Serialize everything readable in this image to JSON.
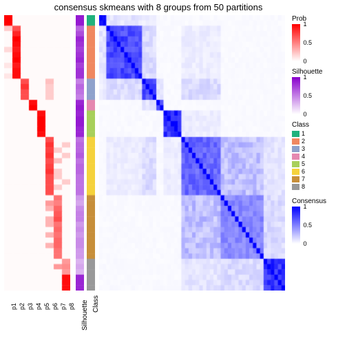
{
  "title": "consensus skmeans with 8 groups from 50 partitions",
  "n_samples": 52,
  "prob": {
    "columns": [
      "p1",
      "p2",
      "p3",
      "p4",
      "p5",
      "p6",
      "p7",
      "p8"
    ],
    "class_assignment": [
      1,
      1,
      2,
      2,
      2,
      2,
      2,
      2,
      2,
      2,
      2,
      2,
      3,
      3,
      3,
      3,
      4,
      4,
      5,
      5,
      5,
      5,
      5,
      6,
      6,
      6,
      6,
      6,
      6,
      6,
      6,
      6,
      6,
      6,
      7,
      7,
      7,
      7,
      7,
      7,
      7,
      7,
      7,
      7,
      7,
      7,
      8,
      8,
      8,
      8,
      8,
      8
    ],
    "prob_strength": [
      1,
      1,
      0.7,
      0.85,
      1,
      0.95,
      0.9,
      0.95,
      1,
      0.9,
      0.95,
      0.95,
      0.7,
      0.8,
      0.7,
      0.7,
      0.95,
      1,
      0.95,
      1,
      1,
      1,
      0.95,
      0.7,
      0.8,
      0.75,
      0.8,
      0.7,
      0.75,
      0.8,
      0.7,
      0.7,
      0.7,
      0.7,
      0.55,
      0.5,
      0.6,
      0.65,
      0.7,
      0.55,
      0.6,
      0.55,
      0.6,
      0.6,
      0.55,
      0.55,
      0.4,
      0.45,
      0.4,
      0.95,
      0.95,
      0.95
    ],
    "secondary_col": [
      -1,
      -1,
      0,
      1,
      -1,
      1,
      0,
      1,
      -1,
      0,
      1,
      0,
      5,
      5,
      5,
      5,
      -1,
      -1,
      -1,
      -1,
      -1,
      -1,
      -1,
      5,
      7,
      6,
      7,
      6,
      5,
      6,
      6,
      7,
      6,
      5,
      6,
      5,
      5,
      6,
      5,
      5,
      6,
      5,
      6,
      5,
      6,
      6,
      7,
      6,
      7,
      -1,
      -1,
      -1
    ],
    "secondary_strength": [
      0,
      0,
      0.2,
      0.15,
      0,
      0.1,
      0.15,
      0.1,
      0,
      0.1,
      0.1,
      0.1,
      0.25,
      0.2,
      0.2,
      0.2,
      0,
      0,
      0,
      0,
      0,
      0,
      0,
      0.25,
      0.2,
      0.2,
      0.2,
      0.25,
      0.2,
      0.2,
      0.2,
      0.2,
      0.2,
      0.2,
      0.35,
      0.4,
      0.3,
      0.3,
      0.3,
      0.3,
      0.3,
      0.3,
      0.3,
      0.3,
      0.3,
      0.3,
      0.5,
      0.4,
      0.5,
      0,
      0,
      0
    ],
    "colormap": {
      "low": "#ffffff",
      "high": "#ff0000"
    }
  },
  "silhouette": {
    "values": [
      0.9,
      0.9,
      0.6,
      0.7,
      0.85,
      0.8,
      0.75,
      0.8,
      0.85,
      0.75,
      0.8,
      0.8,
      0.5,
      0.6,
      0.55,
      0.5,
      0.85,
      0.9,
      0.85,
      0.9,
      0.9,
      0.85,
      0.85,
      0.55,
      0.6,
      0.6,
      0.65,
      0.55,
      0.6,
      0.6,
      0.55,
      0.55,
      0.55,
      0.55,
      0.4,
      0.35,
      0.45,
      0.5,
      0.5,
      0.4,
      0.45,
      0.4,
      0.45,
      0.45,
      0.4,
      0.4,
      0.3,
      0.35,
      0.3,
      0.85,
      0.85,
      0.85
    ],
    "colormap": {
      "low": "#ffffff",
      "high": "#8800cc"
    }
  },
  "class": {
    "palette": {
      "1": "#1fb27d",
      "2": "#f08860",
      "3": "#8fa2cc",
      "4": "#e589b0",
      "5": "#a8d05a",
      "6": "#f5d23c",
      "7": "#c78f3a",
      "8": "#999999"
    }
  },
  "consensus": {
    "colormap": {
      "low": "#ffffff",
      "high": "#0000ff"
    },
    "block_strength": {
      "1": 1.0,
      "2": 0.85,
      "3": 0.8,
      "4": 0.95,
      "5": 1.0,
      "6": 0.7,
      "7": 0.55,
      "8": 0.95
    },
    "off_block_pairs": [
      [
        "1",
        "2",
        0.15
      ],
      [
        "1",
        "3",
        0.1
      ],
      [
        "2",
        "3",
        0.2
      ],
      [
        "2",
        "6",
        0.1
      ],
      [
        "3",
        "4",
        0.15
      ],
      [
        "3",
        "6",
        0.2
      ],
      [
        "6",
        "7",
        0.35
      ],
      [
        "6",
        "8",
        0.15
      ],
      [
        "7",
        "8",
        0.2
      ],
      [
        "5",
        "6",
        0.1
      ]
    ]
  },
  "legends": {
    "prob": {
      "title": "Prob",
      "ticks": [
        0,
        0.5,
        1
      ]
    },
    "silhouette": {
      "title": "Silhouette",
      "ticks": [
        0,
        0.5,
        1
      ]
    },
    "class": {
      "title": "Class",
      "items": [
        1,
        2,
        3,
        4,
        5,
        6,
        7,
        8
      ]
    },
    "consensus": {
      "title": "Consensus",
      "ticks": [
        0,
        0.5,
        1
      ]
    }
  },
  "labels": {
    "silhouette": "Silhouette",
    "class": "Class"
  }
}
